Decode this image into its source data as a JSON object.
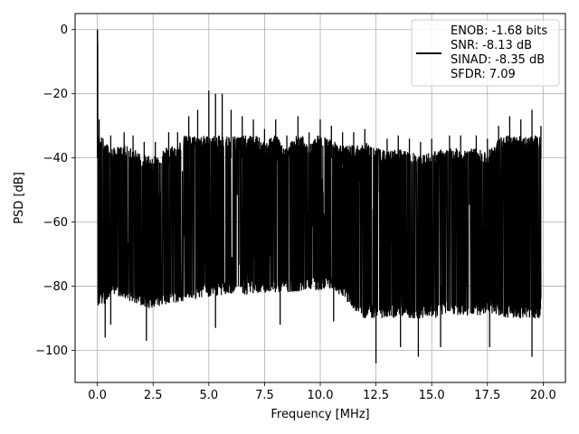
{
  "chart_data": {
    "type": "line",
    "xlabel": "Frequency [MHz]",
    "ylabel": "PSD [dB]",
    "xlim": [
      -1.0,
      21.0
    ],
    "ylim": [
      -110,
      5
    ],
    "xticks": [
      0.0,
      2.5,
      5.0,
      7.5,
      10.0,
      12.5,
      15.0,
      17.5,
      20.0
    ],
    "xtick_labels": [
      "0.0",
      "2.5",
      "5.0",
      "7.5",
      "10.0",
      "12.5",
      "15.0",
      "17.5",
      "20.0"
    ],
    "yticks": [
      0,
      -20,
      -40,
      -60,
      -80,
      -100
    ],
    "ytick_labels": [
      "0",
      "−20",
      "−40",
      "−60",
      "−80",
      "−100"
    ],
    "grid": true,
    "legend_position": "top-right",
    "legend_entries": [
      "ENOB: -1.68 bits",
      "SNR: -8.13 dB",
      "SINAD: -8.35 dB",
      "SFDR: 7.09"
    ],
    "series": [
      {
        "color": "#000000",
        "peaks": [
          {
            "x": 0.0,
            "y": 0.0
          },
          {
            "x": 0.08,
            "y": -28
          },
          {
            "x": 0.6,
            "y": -33
          },
          {
            "x": 1.2,
            "y": -32
          },
          {
            "x": 1.6,
            "y": -33
          },
          {
            "x": 2.1,
            "y": -35
          },
          {
            "x": 2.6,
            "y": -35
          },
          {
            "x": 3.2,
            "y": -32
          },
          {
            "x": 3.6,
            "y": -32
          },
          {
            "x": 4.1,
            "y": -27
          },
          {
            "x": 4.5,
            "y": -25
          },
          {
            "x": 5.0,
            "y": -19
          },
          {
            "x": 5.3,
            "y": -20
          },
          {
            "x": 5.6,
            "y": -20
          },
          {
            "x": 6.0,
            "y": -25
          },
          {
            "x": 6.5,
            "y": -27
          },
          {
            "x": 7.0,
            "y": -28
          },
          {
            "x": 7.5,
            "y": -31
          },
          {
            "x": 8.0,
            "y": -28
          },
          {
            "x": 8.5,
            "y": -33
          },
          {
            "x": 9.0,
            "y": -27
          },
          {
            "x": 9.5,
            "y": -32
          },
          {
            "x": 10.0,
            "y": -28
          },
          {
            "x": 10.5,
            "y": -30
          },
          {
            "x": 11.0,
            "y": -32
          },
          {
            "x": 11.5,
            "y": -32
          },
          {
            "x": 12.0,
            "y": -31
          },
          {
            "x": 13.0,
            "y": -34
          },
          {
            "x": 13.5,
            "y": -33
          },
          {
            "x": 14.0,
            "y": -34
          },
          {
            "x": 14.5,
            "y": -35
          },
          {
            "x": 15.0,
            "y": -34
          },
          {
            "x": 15.8,
            "y": -33
          },
          {
            "x": 16.3,
            "y": -33
          },
          {
            "x": 17.0,
            "y": -33
          },
          {
            "x": 17.5,
            "y": -34
          },
          {
            "x": 18.0,
            "y": -30
          },
          {
            "x": 18.5,
            "y": -27
          },
          {
            "x": 19.0,
            "y": -28
          },
          {
            "x": 19.5,
            "y": -25
          },
          {
            "x": 19.9,
            "y": -30
          }
        ],
        "troughs": [
          {
            "x": 0.35,
            "y": -96
          },
          {
            "x": 0.6,
            "y": -92
          },
          {
            "x": 2.2,
            "y": -97
          },
          {
            "x": 5.3,
            "y": -93
          },
          {
            "x": 8.2,
            "y": -92
          },
          {
            "x": 10.6,
            "y": -91
          },
          {
            "x": 12.5,
            "y": -104
          },
          {
            "x": 13.6,
            "y": -99
          },
          {
            "x": 14.4,
            "y": -102
          },
          {
            "x": 15.4,
            "y": -99
          },
          {
            "x": 17.6,
            "y": -99
          },
          {
            "x": 19.5,
            "y": -102
          }
        ]
      }
    ]
  }
}
